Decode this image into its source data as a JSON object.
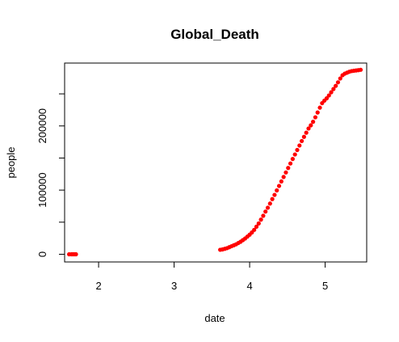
{
  "chart_data": {
    "type": "scatter",
    "title": "Global_Death",
    "xlabel": "date",
    "ylabel": "people",
    "xlim": [
      1.55,
      5.55
    ],
    "ylim": [
      -12000,
      298000
    ],
    "xticks": [
      2,
      3,
      4,
      5
    ],
    "xtick_labels": [
      "2",
      "3",
      "4",
      "5"
    ],
    "yticks": [
      0,
      100000,
      200000
    ],
    "ytick_labels": [
      "0",
      "100000",
      "200000"
    ],
    "yticks_minor": [
      50000,
      150000,
      250000
    ],
    "grid": false,
    "legend": "none",
    "point_color": "#ff0000",
    "series": [
      {
        "x": [
          1.61,
          1.64,
          1.66,
          1.68,
          1.7
        ],
        "y": [
          0,
          0,
          0,
          0,
          0
        ]
      },
      {
        "x": [
          3.61,
          3.64,
          3.67,
          3.7,
          3.73,
          3.76,
          3.79,
          3.82,
          3.85,
          3.88,
          3.91,
          3.94,
          3.97,
          4.0,
          4.03,
          4.06,
          4.09,
          4.12,
          4.15,
          4.18,
          4.21,
          4.24,
          4.27,
          4.3,
          4.33,
          4.36,
          4.39,
          4.42,
          4.45,
          4.48,
          4.51,
          4.54,
          4.57,
          4.6,
          4.63,
          4.66,
          4.69,
          4.72,
          4.75,
          4.78,
          4.81,
          4.84,
          4.87,
          4.9,
          4.93,
          4.96,
          4.99,
          5.02,
          5.05,
          5.08,
          5.11,
          5.14,
          5.17,
          5.2,
          5.23,
          5.26,
          5.29,
          5.32,
          5.35,
          5.38,
          5.41,
          5.44,
          5.47
        ],
        "y": [
          7000,
          7500,
          8500,
          9500,
          11000,
          12500,
          14000,
          15500,
          17500,
          19500,
          22000,
          24500,
          27500,
          30500,
          34000,
          38000,
          43000,
          48000,
          54000,
          60000,
          66500,
          72500,
          79000,
          86000,
          92500,
          99500,
          106500,
          113500,
          120500,
          127500,
          134500,
          141500,
          148500,
          155500,
          162500,
          169500,
          176500,
          183000,
          189500,
          196000,
          201000,
          206500,
          213500,
          221000,
          228500,
          235500,
          239500,
          243000,
          247500,
          252500,
          257500,
          262500,
          268000,
          274000,
          279000,
          281500,
          283000,
          284500,
          285500,
          286000,
          286500,
          287000,
          287500
        ]
      }
    ]
  }
}
